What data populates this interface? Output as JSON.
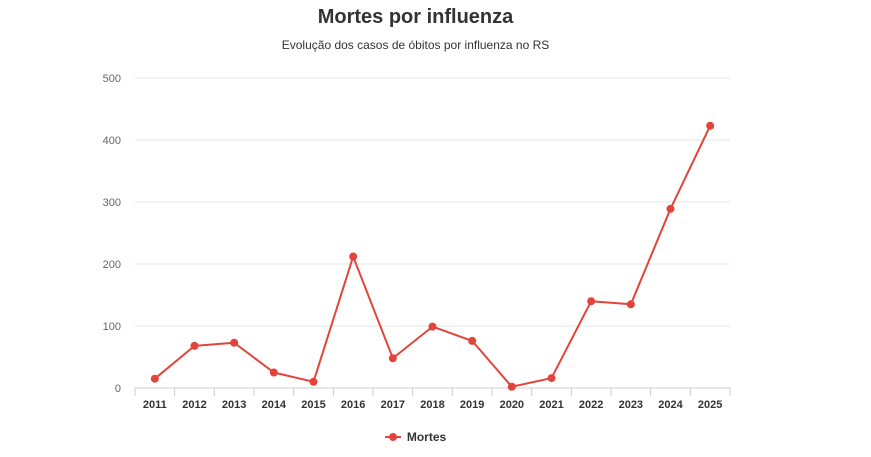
{
  "chart_data": {
    "type": "line",
    "title": "Mortes por influenza",
    "subtitle": "Evolução dos casos de óbitos por influenza no RS",
    "categories": [
      "2011",
      "2012",
      "2013",
      "2014",
      "2015",
      "2016",
      "2017",
      "2018",
      "2019",
      "2020",
      "2021",
      "2022",
      "2023",
      "2024",
      "2025"
    ],
    "series": [
      {
        "name": "Mortes",
        "color": "#e2443b",
        "values": [
          15,
          68,
          73,
          25,
          10,
          212,
          48,
          99,
          76,
          2,
          16,
          140,
          135,
          289,
          423
        ]
      }
    ],
    "ylim": [
      0,
      500
    ],
    "yticks": [
      0,
      100,
      200,
      300,
      400,
      500
    ],
    "xlabel": "",
    "ylabel": "",
    "grid": true,
    "legend_position": "bottom-center"
  }
}
